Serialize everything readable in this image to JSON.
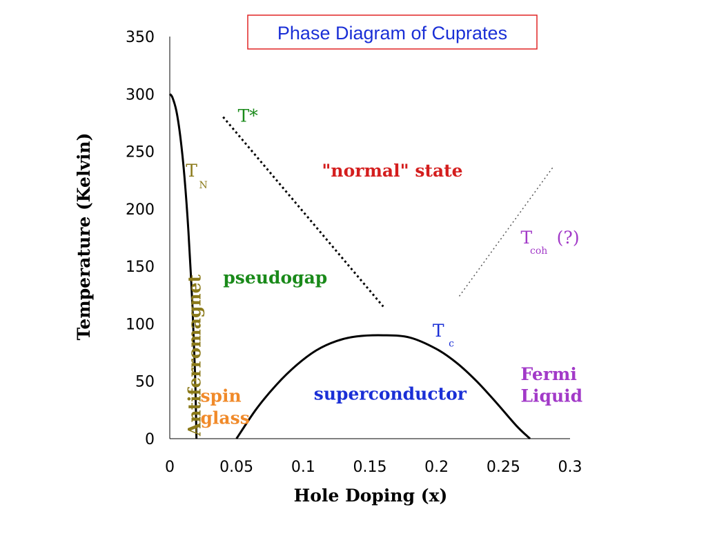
{
  "chart_data": {
    "type": "line",
    "title": "Phase Diagram of Cuprates",
    "xlabel": "Hole Doping (x)",
    "ylabel": "Temperature (Kelvin)",
    "xlim": [
      0,
      0.3
    ],
    "ylim": [
      0,
      350
    ],
    "x_ticks": [
      "0",
      "0.05",
      "0.1",
      "0.15",
      "0.2",
      "0.25",
      "0.3"
    ],
    "y_ticks": [
      "0",
      "50",
      "100",
      "150",
      "200",
      "250",
      "300",
      "350"
    ],
    "series": [
      {
        "name": "TN",
        "style": "solid",
        "color": "#000000",
        "x": [
          0,
          0.002,
          0.005,
          0.008,
          0.011,
          0.014,
          0.017,
          0.019,
          0.02
        ],
        "y": [
          300,
          297,
          285,
          262,
          228,
          180,
          115,
          55,
          0
        ]
      },
      {
        "name": "T*",
        "style": "dotted",
        "color": "#000000",
        "x": [
          0.04,
          0.16
        ],
        "y": [
          280,
          115
        ]
      },
      {
        "name": "Tc",
        "style": "solid",
        "color": "#000000",
        "x": [
          0.05,
          0.065,
          0.08,
          0.095,
          0.11,
          0.125,
          0.14,
          0.16,
          0.18,
          0.2,
          0.215,
          0.23,
          0.245,
          0.26,
          0.27
        ],
        "y": [
          0,
          26,
          47,
          64,
          77,
          85,
          89,
          90,
          88,
          78,
          66,
          50,
          31,
          11,
          0
        ]
      },
      {
        "name": "Tcoh (?)",
        "style": "dotted-thin",
        "color": "#555555",
        "x": [
          0.217,
          0.287
        ],
        "y": [
          124,
          236
        ]
      }
    ],
    "annotations": [
      {
        "key": "tstar",
        "text": "T*",
        "x": 0.051,
        "y": 276,
        "color": "#1a8a1a",
        "size": 25,
        "bold": false
      },
      {
        "key": "tn_main",
        "text": "T",
        "x": 0.012,
        "y": 228,
        "color": "#8b7a1a",
        "size": 25,
        "bold": false
      },
      {
        "key": "tn_sub",
        "text": "N",
        "x": 0.022,
        "y": 218,
        "color": "#8b7a1a",
        "size": 14,
        "bold": false
      },
      {
        "key": "normal",
        "text": "\"normal\" state",
        "x": 0.114,
        "y": 228,
        "color": "#d41e1e",
        "size": 25,
        "bold": true
      },
      {
        "key": "tcoh_main",
        "text": "T",
        "x": 0.263,
        "y": 170,
        "color": "#a23ac8",
        "size": 25,
        "bold": false
      },
      {
        "key": "tcoh_sub",
        "text": "coh",
        "x": 0.27,
        "y": 161,
        "color": "#a23ac8",
        "size": 14,
        "bold": false
      },
      {
        "key": "tcoh_q",
        "text": "(?)",
        "x": 0.29,
        "y": 170,
        "color": "#a23ac8",
        "size": 25,
        "bold": false
      },
      {
        "key": "pseudogap",
        "text": "pseudogap",
        "x": 0.04,
        "y": 135,
        "color": "#1a8a1a",
        "size": 25,
        "bold": true
      },
      {
        "key": "tc_main",
        "text": "T",
        "x": 0.197,
        "y": 89,
        "color": "#1a2fd6",
        "size": 25,
        "bold": false
      },
      {
        "key": "tc_sub",
        "text": "c",
        "x": 0.209,
        "y": 80,
        "color": "#1a2fd6",
        "size": 14,
        "bold": false
      },
      {
        "key": "fermi1",
        "text": "Fermi",
        "x": 0.263,
        "y": 51,
        "color": "#a23ac8",
        "size": 25,
        "bold": true
      },
      {
        "key": "fermi2",
        "text": "Liquid",
        "x": 0.263,
        "y": 32,
        "color": "#a23ac8",
        "size": 25,
        "bold": true
      },
      {
        "key": "superconductor",
        "text": "superconductor",
        "x": 0.108,
        "y": 34,
        "color": "#1a2fd6",
        "size": 25,
        "bold": true
      },
      {
        "key": "spin",
        "text": "spin",
        "x": 0.023,
        "y": 32,
        "color": "#f08a2a",
        "size": 25,
        "bold": true
      },
      {
        "key": "glass",
        "text": "glass",
        "x": 0.023,
        "y": 13,
        "color": "#f08a2a",
        "size": 25,
        "bold": true
      }
    ],
    "vertical_label": {
      "text": "Antiferromagnet",
      "x": 0.01,
      "y": 0,
      "color": "#8b7a1a",
      "size": 25
    },
    "grid": false,
    "legend": "none"
  }
}
